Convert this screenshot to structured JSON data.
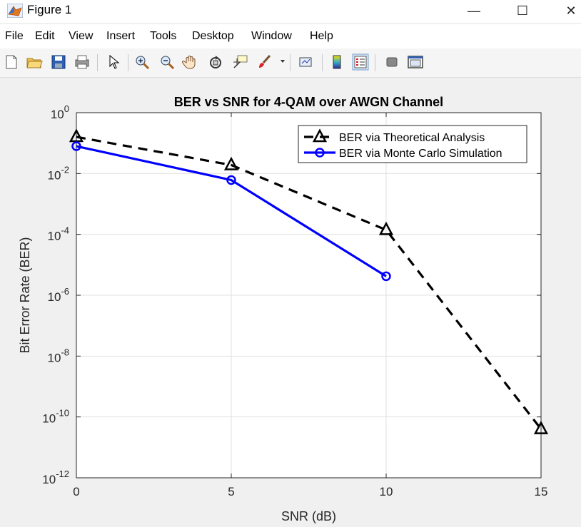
{
  "window": {
    "title": "Figure 1",
    "minimize_glyph": "—",
    "maximize_glyph": "☐",
    "close_glyph": "✕"
  },
  "menu": [
    "File",
    "Edit",
    "View",
    "Insert",
    "Tools",
    "Desktop",
    "Window",
    "Help"
  ],
  "toolbar_icons": [
    "new-figure-icon",
    "open-file-icon",
    "save-icon",
    "print-icon",
    "edit-plot-arrow-icon",
    "zoom-in-icon",
    "zoom-out-icon",
    "pan-hand-icon",
    "rotate-3d-icon",
    "data-cursor-icon",
    "brush-icon",
    "link-plot-icon",
    "insert-colorbar-icon",
    "insert-legend-icon",
    "hide-plot-tools-icon",
    "show-plot-tools-icon"
  ],
  "chart_data": {
    "type": "line",
    "title": "BER vs SNR for 4-QAM over AWGN Channel",
    "xlabel": "SNR (dB)",
    "ylabel": "Bit Error Rate (BER)",
    "xlim": [
      0,
      15
    ],
    "ylim": [
      1e-12,
      1
    ],
    "yscale": "log",
    "grid": true,
    "legend_position": "top-right",
    "xticks": [
      "0",
      "5",
      "10",
      "15"
    ],
    "yticks": [
      {
        "base": "10",
        "exp": "0"
      },
      {
        "base": "10",
        "exp": "-2"
      },
      {
        "base": "10",
        "exp": "-4"
      },
      {
        "base": "10",
        "exp": "-6"
      },
      {
        "base": "10",
        "exp": "-8"
      },
      {
        "base": "10",
        "exp": "-10"
      },
      {
        "base": "10",
        "exp": "-12"
      }
    ],
    "series": [
      {
        "name": "BER via Theoretical Analysis",
        "x": [
          0,
          5,
          10,
          15
        ],
        "y": [
          0.16,
          0.019,
          0.00014,
          4e-11
        ],
        "color": "#000000",
        "linestyle": "dashed",
        "marker": "triangle"
      },
      {
        "name": "BER via Monte Carlo Simulation",
        "x": [
          0,
          5,
          10
        ],
        "y": [
          0.079,
          0.0061,
          4.2e-06
        ],
        "color": "#0000ff",
        "linestyle": "solid",
        "marker": "circle"
      }
    ]
  }
}
